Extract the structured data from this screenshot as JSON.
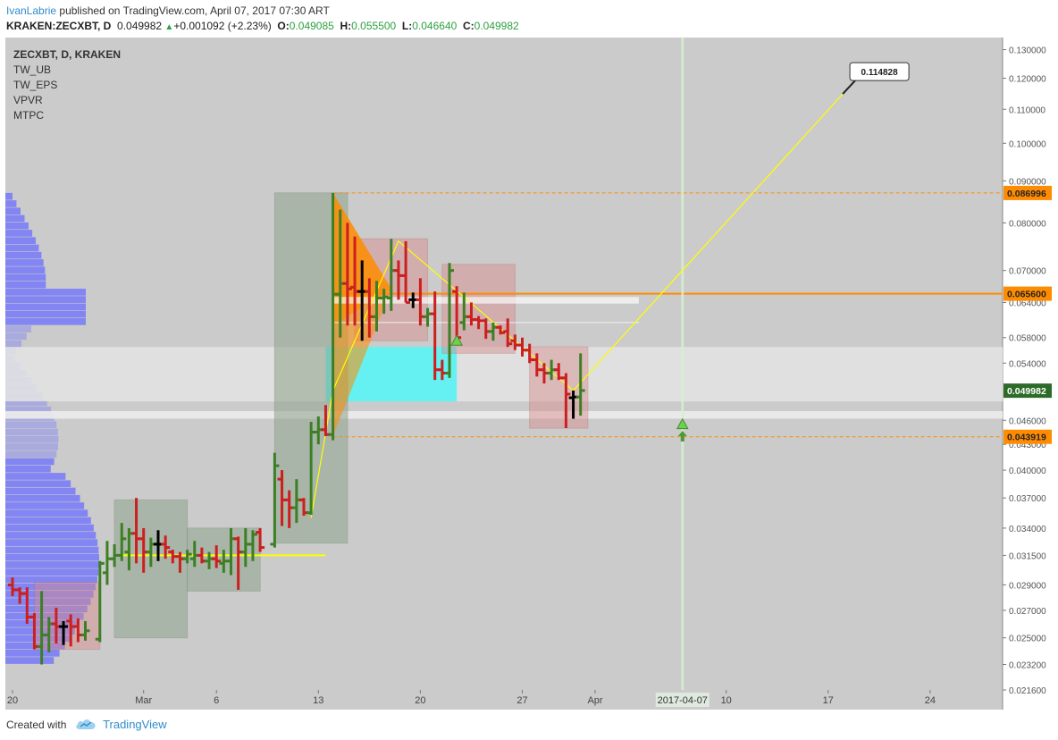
{
  "header": {
    "user": "IvanLabrie",
    "published": "published on TradingView.com, April 07, 2017 07:30 ART",
    "symbol": "KRAKEN:ZECXBT, D",
    "last": "0.049982",
    "change": "+0.001092 (+2.23%)",
    "o_label": "O:",
    "o_value": "0.049085",
    "h_label": "H:",
    "h_value": "0.055500",
    "l_label": "L:",
    "l_value": "0.046640",
    "c_label": "C:",
    "c_value": "0.049982"
  },
  "legend": {
    "main": "ZECXBT, D, KRAKEN",
    "indicators": [
      "TW_UB",
      "TW_EPS",
      "VPVR",
      "MTPC"
    ]
  },
  "footer": {
    "created_with": "Created with",
    "brand": "TradingView",
    "logo_icon": "tradingview-cloud-icon"
  },
  "colors": {
    "up": "#3d7f25",
    "down": "#cc1f1f",
    "neutral": "#000000",
    "background": "#cbcbcb",
    "price_axis": "#ffffff",
    "orange": "#ff8c00",
    "cyan": "#00ffff",
    "volume_profile": "#6a6dff",
    "current_price_box": "#2d6b29",
    "yellow": "#ffff00"
  },
  "chart_data": {
    "type": "candlestick",
    "y_scale": "log",
    "ylim": [
      0.0216,
      0.1345
    ],
    "y_ticks": [
      "0.130000",
      "0.120000",
      "0.110000",
      "0.100000",
      "0.090000",
      "0.080000",
      "0.070000",
      "0.064000",
      "0.058000",
      "0.054000",
      "0.046000",
      "0.043000",
      "0.040000",
      "0.037000",
      "0.034000",
      "0.031500",
      "0.029000",
      "0.027000",
      "0.025000",
      "0.023200",
      "0.021600"
    ],
    "x_ticks": [
      {
        "day": 0,
        "label": "20"
      },
      {
        "day": 9,
        "label": "Mar"
      },
      {
        "day": 14,
        "label": "6"
      },
      {
        "day": 21,
        "label": "13"
      },
      {
        "day": 28,
        "label": "20"
      },
      {
        "day": 35,
        "label": "27"
      },
      {
        "day": 40,
        "label": "Apr"
      },
      {
        "day": 49,
        "label": "10"
      },
      {
        "day": 56,
        "label": "17"
      },
      {
        "day": 63,
        "label": "24"
      }
    ],
    "x_start": "2017-02-20",
    "current_date_label": "2017-04-07",
    "current_day": 46,
    "candles": [
      {
        "d": 0,
        "o": 0.029,
        "h": 0.0296,
        "l": 0.0281,
        "c": 0.0286
      },
      {
        "d": 0.5,
        "o": 0.0286,
        "h": 0.0288,
        "l": 0.0275,
        "c": 0.0283
      },
      {
        "d": 1,
        "o": 0.0283,
        "h": 0.0288,
        "l": 0.026,
        "c": 0.0265
      },
      {
        "d": 1.5,
        "o": 0.0265,
        "h": 0.0268,
        "l": 0.0242,
        "c": 0.0244
      },
      {
        "d": 2,
        "o": 0.0244,
        "h": 0.0285,
        "l": 0.0232,
        "c": 0.0252
      },
      {
        "d": 2.5,
        "o": 0.0252,
        "h": 0.0265,
        "l": 0.024,
        "c": 0.026
      },
      {
        "d": 3,
        "o": 0.026,
        "h": 0.0272,
        "l": 0.0246,
        "c": 0.0258
      },
      {
        "d": 3.5,
        "o": 0.0258,
        "h": 0.0262,
        "l": 0.0245,
        "c": 0.0258
      },
      {
        "d": 4,
        "o": 0.0262,
        "h": 0.0267,
        "l": 0.0244,
        "c": 0.0258
      },
      {
        "d": 4.5,
        "o": 0.0258,
        "h": 0.0264,
        "l": 0.0247,
        "c": 0.0252
      },
      {
        "d": 5,
        "o": 0.0252,
        "h": 0.0262,
        "l": 0.0248,
        "c": 0.0255
      },
      {
        "d": 6,
        "o": 0.0249,
        "h": 0.031,
        "l": 0.0247,
        "c": 0.0308
      },
      {
        "d": 6.5,
        "o": 0.03,
        "h": 0.0328,
        "l": 0.029,
        "c": 0.0312
      },
      {
        "d": 7,
        "o": 0.0312,
        "h": 0.0325,
        "l": 0.0305,
        "c": 0.0315
      },
      {
        "d": 7.5,
        "o": 0.0315,
        "h": 0.0345,
        "l": 0.031,
        "c": 0.033
      },
      {
        "d": 8,
        "o": 0.0318,
        "h": 0.034,
        "l": 0.0302,
        "c": 0.0335
      },
      {
        "d": 8.5,
        "o": 0.0335,
        "h": 0.037,
        "l": 0.0308,
        "c": 0.033
      },
      {
        "d": 9,
        "o": 0.033,
        "h": 0.034,
        "l": 0.03,
        "c": 0.0318
      },
      {
        "d": 9.5,
        "o": 0.0318,
        "h": 0.0331,
        "l": 0.0305,
        "c": 0.0325
      },
      {
        "d": 10,
        "o": 0.0325,
        "h": 0.0338,
        "l": 0.031,
        "c": 0.0325
      },
      {
        "d": 10.5,
        "o": 0.0325,
        "h": 0.0333,
        "l": 0.0312,
        "c": 0.0322
      },
      {
        "d": 11,
        "o": 0.0318,
        "h": 0.032,
        "l": 0.0308,
        "c": 0.0314
      },
      {
        "d": 11.5,
        "o": 0.0314,
        "h": 0.0318,
        "l": 0.03,
        "c": 0.0312
      },
      {
        "d": 12,
        "o": 0.0312,
        "h": 0.032,
        "l": 0.0308,
        "c": 0.0316
      },
      {
        "d": 12.5,
        "o": 0.0312,
        "h": 0.0328,
        "l": 0.0305,
        "c": 0.0315
      },
      {
        "d": 13,
        "o": 0.0315,
        "h": 0.0322,
        "l": 0.0308,
        "c": 0.031
      },
      {
        "d": 13.5,
        "o": 0.031,
        "h": 0.0318,
        "l": 0.0303,
        "c": 0.0312
      },
      {
        "d": 14,
        "o": 0.0312,
        "h": 0.0324,
        "l": 0.0304,
        "c": 0.031
      },
      {
        "d": 14.5,
        "o": 0.0308,
        "h": 0.032,
        "l": 0.03,
        "c": 0.031
      },
      {
        "d": 15,
        "o": 0.031,
        "h": 0.034,
        "l": 0.0298,
        "c": 0.033
      },
      {
        "d": 15.5,
        "o": 0.033,
        "h": 0.0332,
        "l": 0.0286,
        "c": 0.0318
      },
      {
        "d": 16,
        "o": 0.0318,
        "h": 0.034,
        "l": 0.0305,
        "c": 0.0325
      },
      {
        "d": 16.5,
        "o": 0.0325,
        "h": 0.0338,
        "l": 0.031,
        "c": 0.0334
      },
      {
        "d": 17,
        "o": 0.0336,
        "h": 0.034,
        "l": 0.0318,
        "c": 0.0322
      },
      {
        "d": 18,
        "o": 0.0325,
        "h": 0.042,
        "l": 0.0322,
        "c": 0.0405
      },
      {
        "d": 18.5,
        "o": 0.039,
        "h": 0.04,
        "l": 0.0342,
        "c": 0.0368
      },
      {
        "d": 19,
        "o": 0.0368,
        "h": 0.0378,
        "l": 0.034,
        "c": 0.036
      },
      {
        "d": 19.5,
        "o": 0.036,
        "h": 0.039,
        "l": 0.0345,
        "c": 0.0368
      },
      {
        "d": 20,
        "o": 0.0368,
        "h": 0.037,
        "l": 0.0352,
        "c": 0.0355
      },
      {
        "d": 20.5,
        "o": 0.0355,
        "h": 0.0458,
        "l": 0.0353,
        "c": 0.0445
      },
      {
        "d": 21,
        "o": 0.0445,
        "h": 0.0465,
        "l": 0.043,
        "c": 0.0448
      },
      {
        "d": 21.5,
        "o": 0.0448,
        "h": 0.048,
        "l": 0.044,
        "c": 0.0442
      },
      {
        "d": 22,
        "o": 0.0442,
        "h": 0.087,
        "l": 0.0435,
        "c": 0.0655
      },
      {
        "d": 22.5,
        "o": 0.0655,
        "h": 0.083,
        "l": 0.058,
        "c": 0.0675
      },
      {
        "d": 23,
        "o": 0.0675,
        "h": 0.08,
        "l": 0.06,
        "c": 0.0665
      },
      {
        "d": 23.5,
        "o": 0.0668,
        "h": 0.077,
        "l": 0.06,
        "c": 0.066
      },
      {
        "d": 24,
        "o": 0.066,
        "h": 0.072,
        "l": 0.0575,
        "c": 0.066
      },
      {
        "d": 24.5,
        "o": 0.066,
        "h": 0.0685,
        "l": 0.058,
        "c": 0.0615
      },
      {
        "d": 25,
        "o": 0.0615,
        "h": 0.068,
        "l": 0.059,
        "c": 0.0648
      },
      {
        "d": 25.5,
        "o": 0.0648,
        "h": 0.0665,
        "l": 0.062,
        "c": 0.065
      },
      {
        "d": 26,
        "o": 0.0648,
        "h": 0.0765,
        "l": 0.0625,
        "c": 0.07
      },
      {
        "d": 26.5,
        "o": 0.07,
        "h": 0.072,
        "l": 0.0645,
        "c": 0.069
      },
      {
        "d": 27,
        "o": 0.069,
        "h": 0.076,
        "l": 0.064,
        "c": 0.064
      },
      {
        "d": 27.5,
        "o": 0.0645,
        "h": 0.0658,
        "l": 0.063,
        "c": 0.0645
      },
      {
        "d": 28,
        "o": 0.0645,
        "h": 0.0685,
        "l": 0.06,
        "c": 0.0615
      },
      {
        "d": 28.5,
        "o": 0.0615,
        "h": 0.063,
        "l": 0.0598,
        "c": 0.062
      },
      {
        "d": 29,
        "o": 0.062,
        "h": 0.066,
        "l": 0.0515,
        "c": 0.053
      },
      {
        "d": 29.5,
        "o": 0.053,
        "h": 0.0545,
        "l": 0.0515,
        "c": 0.0525
      },
      {
        "d": 30,
        "o": 0.0525,
        "h": 0.0715,
        "l": 0.0518,
        "c": 0.07
      },
      {
        "d": 30.5,
        "o": 0.066,
        "h": 0.067,
        "l": 0.0575,
        "c": 0.058
      },
      {
        "d": 31,
        "o": 0.0605,
        "h": 0.0658,
        "l": 0.0592,
        "c": 0.0615
      },
      {
        "d": 31.5,
        "o": 0.0615,
        "h": 0.064,
        "l": 0.06,
        "c": 0.061
      },
      {
        "d": 32,
        "o": 0.061,
        "h": 0.0616,
        "l": 0.0594,
        "c": 0.0608
      },
      {
        "d": 32.5,
        "o": 0.0608,
        "h": 0.0612,
        "l": 0.0578,
        "c": 0.059
      },
      {
        "d": 33,
        "o": 0.059,
        "h": 0.0605,
        "l": 0.0575,
        "c": 0.0597
      },
      {
        "d": 33.5,
        "o": 0.0597,
        "h": 0.06,
        "l": 0.0585,
        "c": 0.0588
      },
      {
        "d": 34,
        "o": 0.059,
        "h": 0.0612,
        "l": 0.0565,
        "c": 0.057
      },
      {
        "d": 34.5,
        "o": 0.0575,
        "h": 0.0585,
        "l": 0.056,
        "c": 0.0568
      },
      {
        "d": 35,
        "o": 0.0568,
        "h": 0.058,
        "l": 0.055,
        "c": 0.056
      },
      {
        "d": 35.5,
        "o": 0.056,
        "h": 0.057,
        "l": 0.054,
        "c": 0.0545
      },
      {
        "d": 36,
        "o": 0.0545,
        "h": 0.0555,
        "l": 0.052,
        "c": 0.053
      },
      {
        "d": 36.5,
        "o": 0.053,
        "h": 0.054,
        "l": 0.051,
        "c": 0.0525
      },
      {
        "d": 37,
        "o": 0.0525,
        "h": 0.0545,
        "l": 0.0515,
        "c": 0.053
      },
      {
        "d": 37.5,
        "o": 0.053,
        "h": 0.054,
        "l": 0.0515,
        "c": 0.0518
      },
      {
        "d": 38,
        "o": 0.0518,
        "h": 0.0525,
        "l": 0.045,
        "c": 0.0495
      },
      {
        "d": 38.5,
        "o": 0.049,
        "h": 0.05,
        "l": 0.0462,
        "c": 0.0491
      },
      {
        "d": 39,
        "o": 0.0491,
        "h": 0.0555,
        "l": 0.0466,
        "c": 0.05
      }
    ],
    "horizontal_levels": [
      {
        "value": 0.086996,
        "label": "0.086996",
        "style": "dashed"
      },
      {
        "value": 0.0656,
        "label": "0.065600",
        "style": "solid"
      },
      {
        "value": 0.043919,
        "label": "0.043919",
        "style": "dashed"
      }
    ],
    "last_price_label": "0.049982",
    "target_label": "0.114828",
    "target_value": 0.114828,
    "target_day": 57,
    "support_value": 0.0315,
    "boxes": [
      {
        "kind": "red",
        "d0": 1.5,
        "d1": 6.0,
        "p0": 0.0242,
        "p1": 0.0292
      },
      {
        "kind": "green",
        "d0": 7.0,
        "d1": 12.0,
        "p0": 0.025,
        "p1": 0.0368
      },
      {
        "kind": "green",
        "d0": 12.0,
        "d1": 17.0,
        "p0": 0.0285,
        "p1": 0.034
      },
      {
        "kind": "green",
        "d0": 18.0,
        "d1": 23.0,
        "p0": 0.0326,
        "p1": 0.087
      },
      {
        "kind": "red",
        "d0": 23.5,
        "d1": 28.5,
        "p0": 0.0575,
        "p1": 0.0765
      },
      {
        "kind": "red",
        "d0": 29.5,
        "d1": 34.5,
        "p0": 0.0555,
        "p1": 0.0712
      },
      {
        "kind": "red",
        "d0": 35.5,
        "d1": 39.5,
        "p0": 0.045,
        "p1": 0.0565
      }
    ],
    "zones": [
      {
        "d0": 21.5,
        "d1": 30.5,
        "p0": 0.0485,
        "p1": 0.0565
      }
    ]
  }
}
